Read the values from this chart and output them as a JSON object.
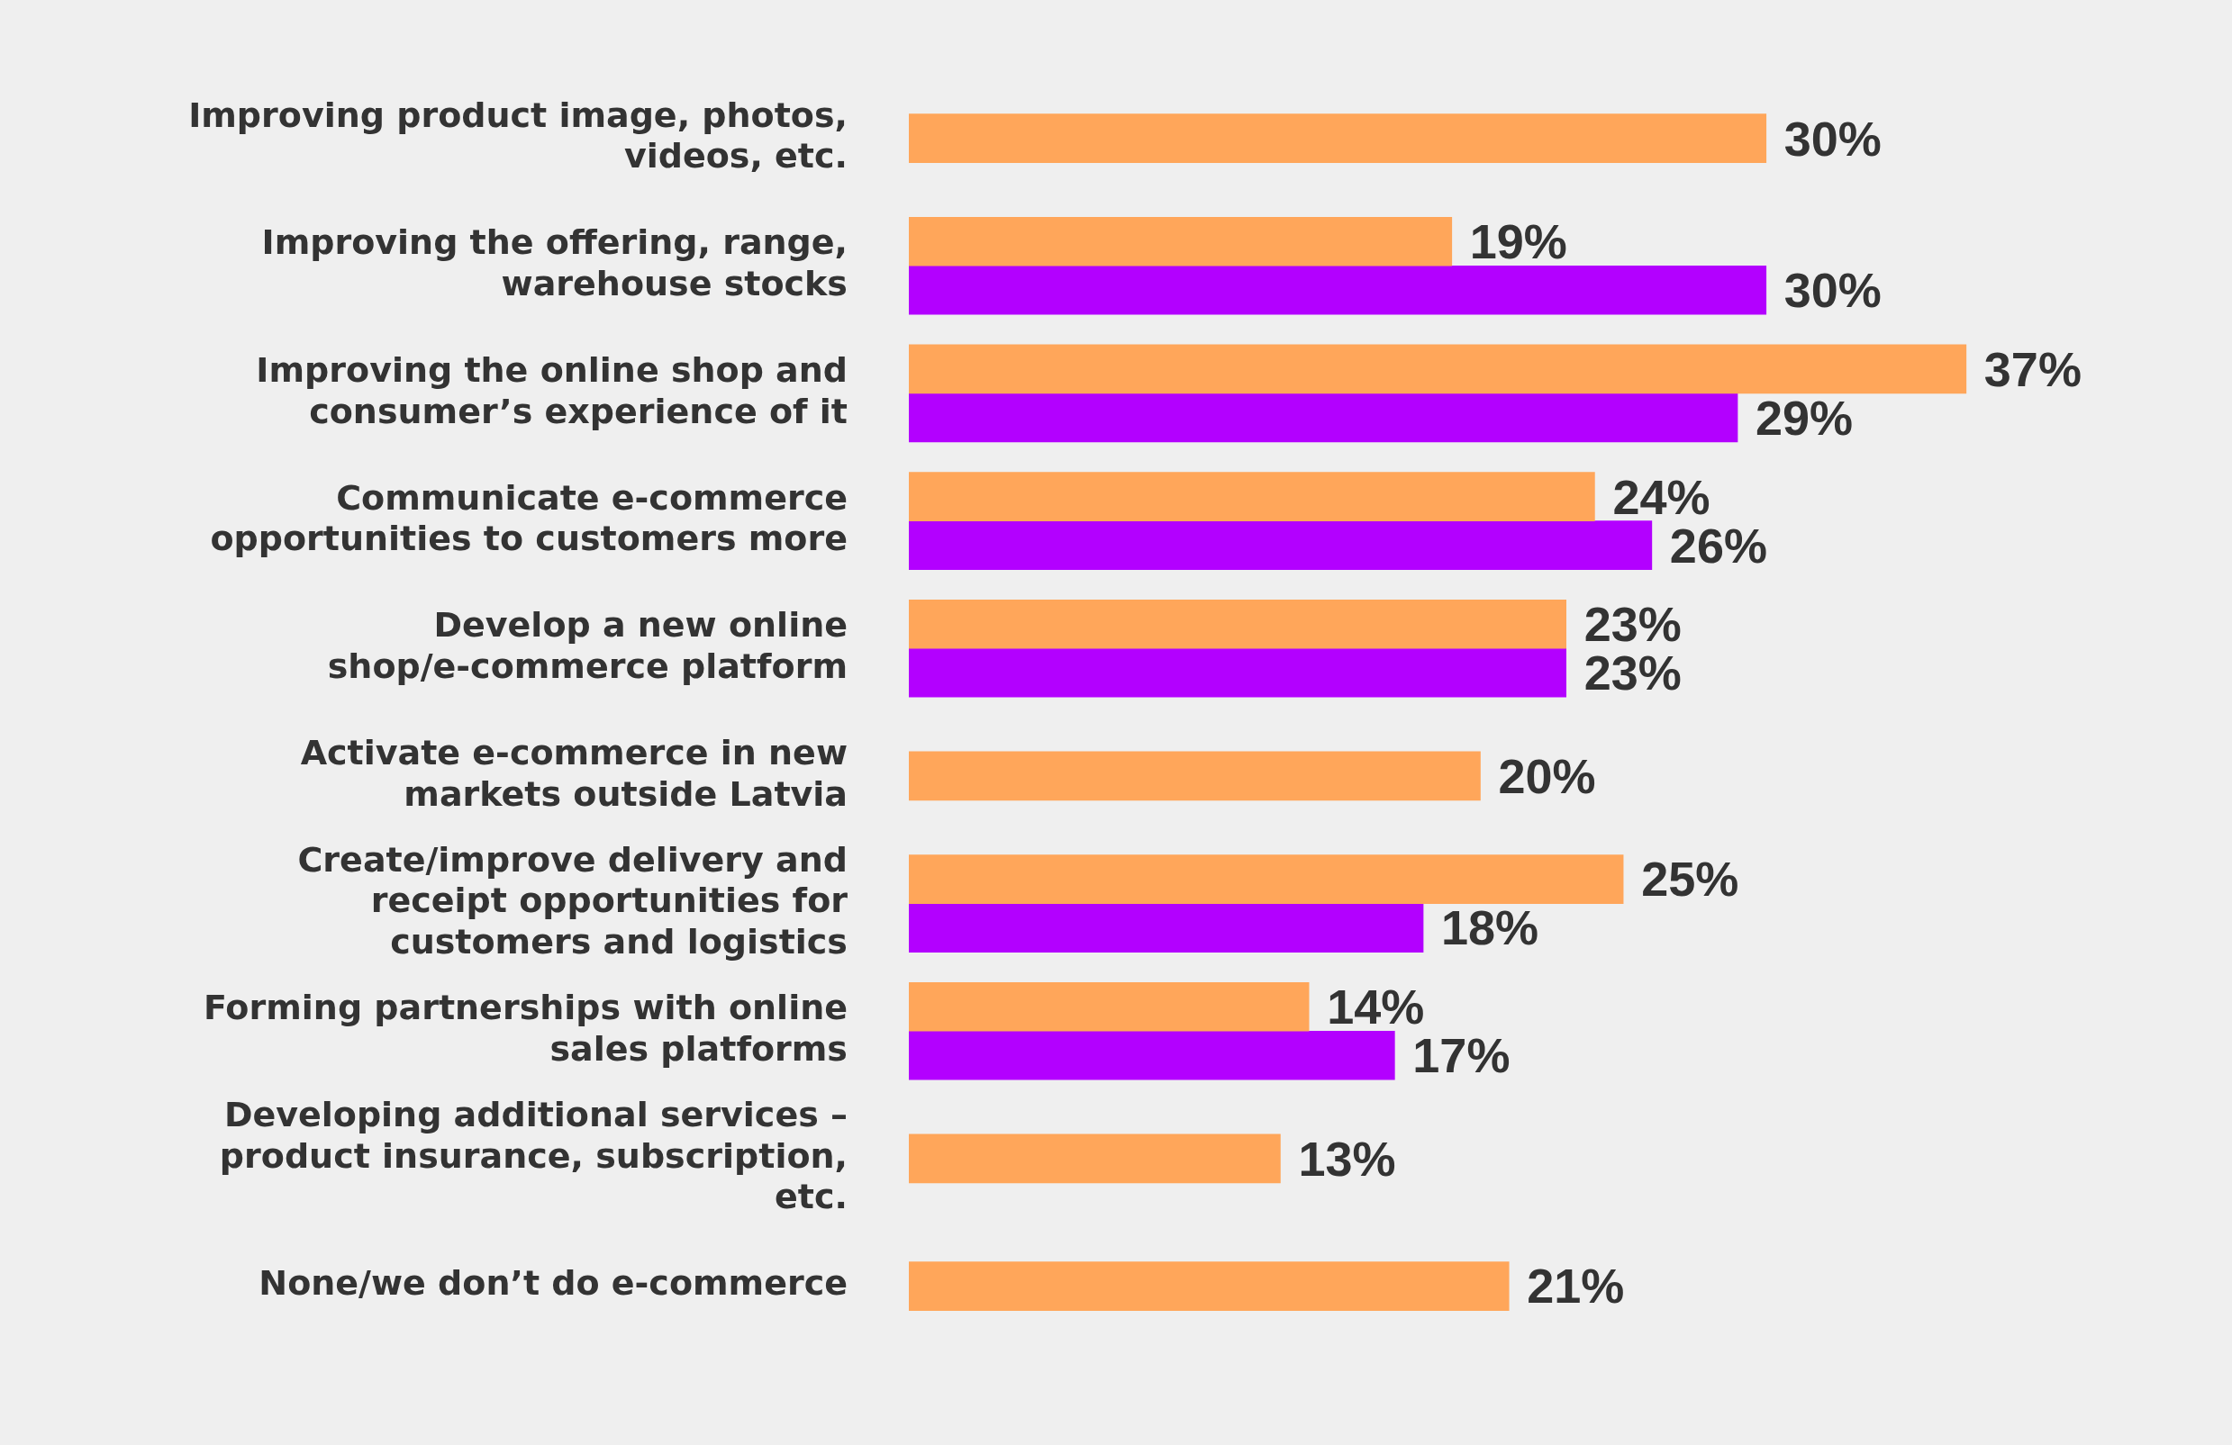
{
  "chart_data": {
    "type": "bar",
    "orientation": "horizontal",
    "categories": [
      "Improving product image, photos, videos, etc.",
      "Improving the offering, range, warehouse stocks",
      "Improving the online shop and consumer’s experience of it",
      "Communicate e-commerce opportunities to customers more",
      "Develop a new online shop/e-commerce platform",
      "Activate e-commerce in new markets outside Latvia",
      "Create/improve delivery and receipt opportunities for customers and logistics",
      "Forming partnerships with online sales platforms",
      "Developing additional services – product insurance, subscription, etc.",
      "None/we don’t do e-commerce"
    ],
    "series": [
      {
        "color": "#ffa65a",
        "values": [
          30,
          19,
          37,
          24,
          23,
          20,
          25,
          14,
          13,
          21
        ],
        "value_labels": [
          "30%",
          "19%",
          "37%",
          "24%",
          "23%",
          "20%",
          "25%",
          "14%",
          "13%",
          "21%"
        ]
      },
      {
        "color": "#b300ff",
        "values": [
          null,
          30,
          29,
          26,
          23,
          null,
          18,
          17,
          null,
          null
        ],
        "value_labels": [
          null,
          "30%",
          "29%",
          "26%",
          "23%",
          null,
          "18%",
          "17%",
          null,
          null
        ]
      }
    ],
    "legend": false
  }
}
